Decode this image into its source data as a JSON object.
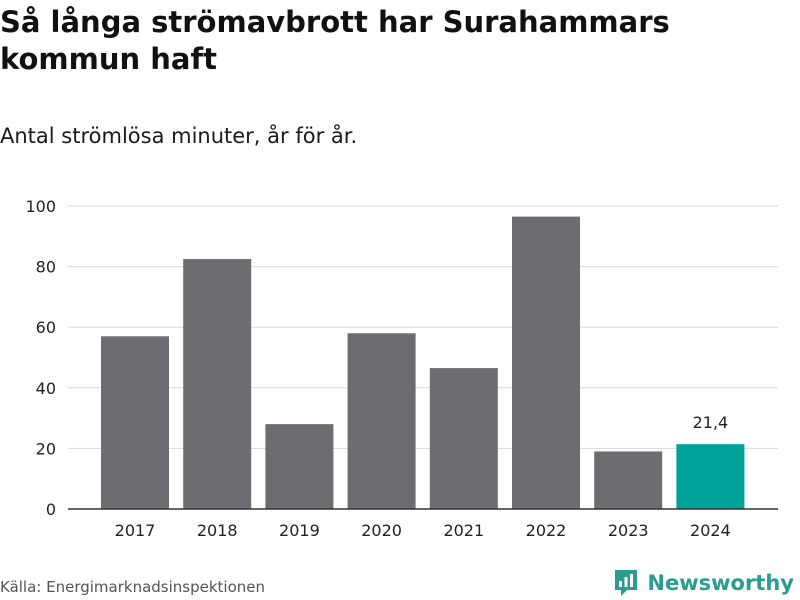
{
  "title": "Så långa strömavbrott har Surahammars kommun haft",
  "subtitle": "Antal strömlösa minuter, år för år.",
  "source": "Källa: Energimarknadsinspektionen",
  "brand": "Newsworthy",
  "colors": {
    "bar": "#6d6c70",
    "highlight": "#00a39a",
    "grid": "#d9d9d9",
    "axis": "#333333",
    "brand": "#2a9d8f"
  },
  "chart_data": {
    "type": "bar",
    "categories": [
      "2017",
      "2018",
      "2019",
      "2020",
      "2021",
      "2022",
      "2023",
      "2024"
    ],
    "values": [
      57,
      82.5,
      28,
      58,
      46.5,
      96.5,
      19,
      21.4
    ],
    "highlight_index": 7,
    "data_labels": [
      {
        "index": 7,
        "text": "21,4"
      }
    ],
    "yticks": [
      0,
      20,
      40,
      60,
      80,
      100
    ],
    "ylim": [
      0,
      100
    ],
    "xlabel": "",
    "ylabel": "",
    "grid": true
  }
}
